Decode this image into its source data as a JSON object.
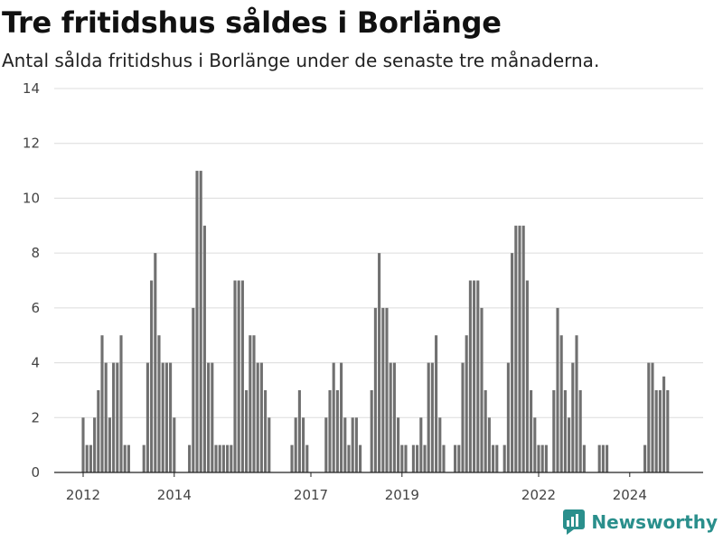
{
  "title": "Tre fritidshus såldes i Borlänge",
  "subtitle": "Antal sålda fritidshus i Borlänge under de senaste tre månaderna.",
  "brand": {
    "name": "Newsworthy",
    "icon": "newsworthy-logo-icon",
    "color": "#2a8f8c"
  },
  "chart_data": {
    "type": "bar",
    "title": "",
    "xlabel": "",
    "ylabel": "",
    "ylim": [
      0,
      14
    ],
    "yticks": [
      0,
      2,
      4,
      6,
      8,
      10,
      12,
      14
    ],
    "xticks": [
      {
        "label": "2012",
        "index": 0
      },
      {
        "label": "2014",
        "index": 24
      },
      {
        "label": "2017",
        "index": 60
      },
      {
        "label": "2019",
        "index": 84
      },
      {
        "label": "2022",
        "index": 120
      },
      {
        "label": "2024",
        "index": 144
      }
    ],
    "grid": true,
    "colors": {
      "bar": "#707070",
      "highlight": "#23918f"
    },
    "values": [
      2,
      1,
      1,
      2,
      3,
      5,
      4,
      2,
      4,
      4,
      5,
      1,
      1,
      0,
      0,
      0,
      1,
      4,
      7,
      8,
      5,
      4,
      4,
      4,
      2,
      0,
      0,
      0,
      1,
      6,
      11,
      11,
      9,
      4,
      4,
      1,
      1,
      1,
      1,
      1,
      7,
      7,
      7,
      3,
      5,
      5,
      4,
      4,
      3,
      2,
      0,
      0,
      0,
      0,
      0,
      1,
      2,
      3,
      2,
      1,
      0,
      0,
      0,
      0,
      2,
      3,
      4,
      3,
      4,
      2,
      1,
      2,
      2,
      1,
      0,
      0,
      3,
      6,
      8,
      6,
      6,
      4,
      4,
      2,
      1,
      1,
      0,
      1,
      1,
      2,
      1,
      4,
      4,
      5,
      2,
      1,
      0,
      0,
      1,
      1,
      4,
      5,
      7,
      7,
      7,
      6,
      3,
      2,
      1,
      1,
      0,
      1,
      4,
      8,
      9,
      9,
      9,
      7,
      3,
      2,
      1,
      1,
      1,
      0,
      3,
      6,
      5,
      3,
      2,
      4,
      5,
      3,
      1,
      0,
      0,
      0,
      1,
      1,
      1,
      0,
      0,
      0,
      0,
      0,
      0,
      0,
      0,
      0,
      1,
      4,
      4,
      3,
      3,
      3.5,
      3
    ],
    "highlight_index": 155,
    "highlight_label": "3"
  }
}
